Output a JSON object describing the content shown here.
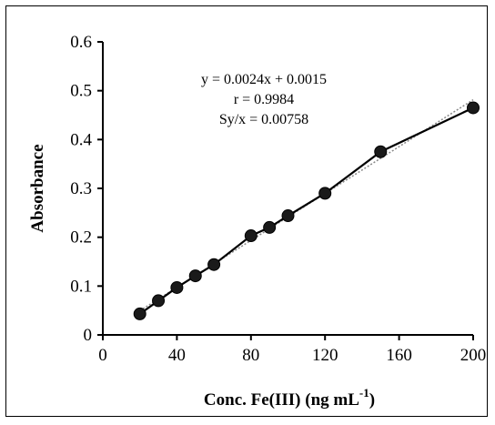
{
  "chart_data": {
    "type": "scatter",
    "xlabel": "Conc. Fe(III) (ng mL",
    "xlabel_sup": "-1",
    "xlabel_close": ")",
    "ylabel": "Absorbance",
    "xlim": [
      0,
      200
    ],
    "ylim": [
      0,
      0.6
    ],
    "xticks": [
      0,
      40,
      80,
      120,
      160,
      200
    ],
    "yticks": [
      0,
      0.1,
      0.2,
      0.3,
      0.4,
      0.5,
      0.6
    ],
    "xtick_labels": [
      "0",
      "40",
      "80",
      "120",
      "160",
      "200"
    ],
    "ytick_labels": [
      "0",
      "0.1",
      "0.2",
      "0.3",
      "0.4",
      "0.5",
      "0.6"
    ],
    "grid": false,
    "series": [
      {
        "x": [
          20,
          30,
          40,
          50,
          60,
          80,
          90,
          100,
          120,
          150,
          200
        ],
        "y": [
          0.043,
          0.07,
          0.097,
          0.121,
          0.144,
          0.203,
          0.22,
          0.244,
          0.29,
          0.375,
          0.465
        ],
        "marker": "circle",
        "connected": true
      }
    ],
    "fit_line": {
      "x": [
        20,
        200
      ],
      "y": [
        0.0495,
        0.4815
      ]
    },
    "annotations": [
      "y = 0.0024x + 0.0015",
      "r = 0.9984",
      "Sy/x = 0.00758"
    ]
  }
}
